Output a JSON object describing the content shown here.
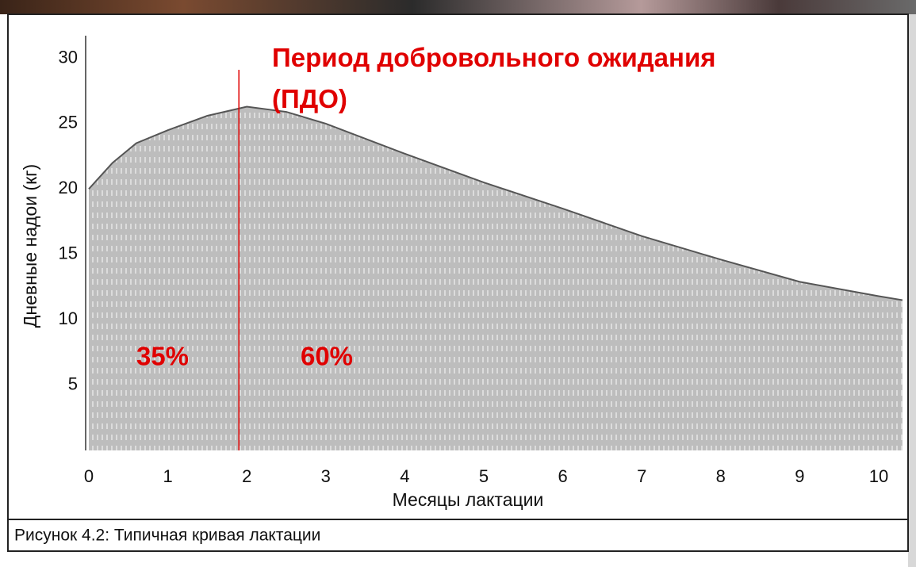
{
  "chart_data": {
    "type": "area",
    "title": "Период добровольного ожидания (ПДО)",
    "caption": "Рисунок 4.2:  Типичная кривая лактации",
    "x_label": "Месяцы лактации",
    "y_label": "Дневные надои (кг)",
    "x": [
      0,
      0.3,
      0.6,
      1,
      1.5,
      2,
      2.5,
      3,
      4,
      5,
      6,
      7,
      8,
      9,
      10,
      10.3
    ],
    "values": [
      20,
      22,
      23.5,
      24.5,
      25.6,
      26.3,
      25.9,
      25,
      22.7,
      20.5,
      18.5,
      16.4,
      14.6,
      12.9,
      11.8,
      11.5
    ],
    "color": "#bdbdbd",
    "line_color": "#555555",
    "vline_x": 1.9,
    "vline_color": "#e00000",
    "annotations": [
      "35%",
      "60%"
    ],
    "annotation_color": "#e00000",
    "xlim": [
      0,
      10.3
    ],
    "ylim": [
      0,
      31
    ],
    "xticks": [
      0,
      1,
      2,
      3,
      4,
      5,
      6,
      7,
      8,
      9,
      10
    ],
    "yticks": [
      5,
      10,
      15,
      20,
      25,
      30
    ]
  }
}
